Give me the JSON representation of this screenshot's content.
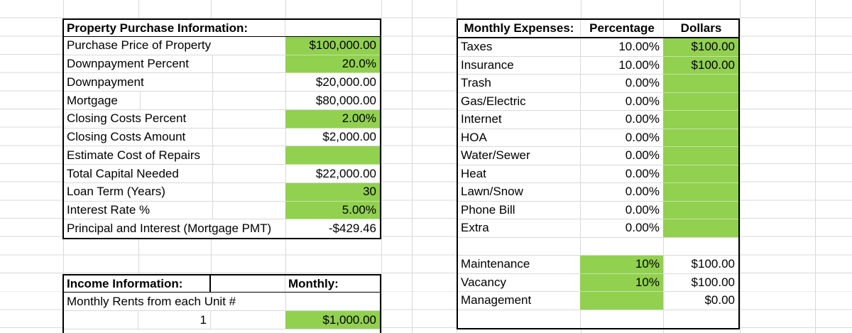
{
  "colors": {
    "green": "#92d050",
    "gridline": "#d9d9d9",
    "border": "#000000"
  },
  "property_table": {
    "title": "Property Purchase Information:",
    "rows": [
      {
        "label": "Purchase Price of Property",
        "value": "$100,000.00"
      },
      {
        "label": "Downpayment Percent",
        "value": "20.0%"
      },
      {
        "label": "Downpayment",
        "value": "$20,000.00"
      },
      {
        "label": "Mortgage",
        "value": "$80,000.00"
      },
      {
        "label": "Closing Costs Percent",
        "value": "2.00%"
      },
      {
        "label": "Closing Costs Amount",
        "value": "$2,000.00"
      },
      {
        "label": "Estimate Cost of Repairs",
        "value": ""
      },
      {
        "label": "Total Capital Needed",
        "value": "$22,000.00"
      },
      {
        "label": "Loan Term (Years)",
        "value": "30"
      },
      {
        "label": "Interest Rate %",
        "value": "5.00%"
      },
      {
        "label": "Principal and Interest (Mortgage PMT)",
        "value": "-$429.46"
      }
    ]
  },
  "expenses_table": {
    "title": "Monthly Expenses:",
    "col_percentage": "Percentage",
    "col_dollars": "Dollars",
    "rows": [
      {
        "label": "Taxes",
        "percentage": "10.00%",
        "dollars": "$100.00"
      },
      {
        "label": "Insurance",
        "percentage": "10.00%",
        "dollars": "$100.00"
      },
      {
        "label": "Trash",
        "percentage": "0.00%",
        "dollars": ""
      },
      {
        "label": "Gas/Electric",
        "percentage": "0.00%",
        "dollars": ""
      },
      {
        "label": "Internet",
        "percentage": "0.00%",
        "dollars": ""
      },
      {
        "label": "HOA",
        "percentage": "0.00%",
        "dollars": ""
      },
      {
        "label": "Water/Sewer",
        "percentage": "0.00%",
        "dollars": ""
      },
      {
        "label": "Heat",
        "percentage": "0.00%",
        "dollars": ""
      },
      {
        "label": "Lawn/Snow",
        "percentage": "0.00%",
        "dollars": ""
      },
      {
        "label": "Phone Bill",
        "percentage": "0.00%",
        "dollars": ""
      },
      {
        "label": "Extra",
        "percentage": "0.00%",
        "dollars": ""
      }
    ],
    "adjustment_rows": [
      {
        "label": "Maintenance",
        "percentage": "10%",
        "dollars": "$100.00"
      },
      {
        "label": "Vacancy",
        "percentage": "10%",
        "dollars": "$100.00"
      },
      {
        "label": "Management",
        "percentage": "",
        "dollars": "$0.00"
      }
    ]
  },
  "income_table": {
    "title": "Income Information:",
    "monthly_header": "Monthly:",
    "rent_row_label": "Monthly Rents from each Unit #",
    "unit_number": "1",
    "unit_rent": "$1,000.00"
  }
}
